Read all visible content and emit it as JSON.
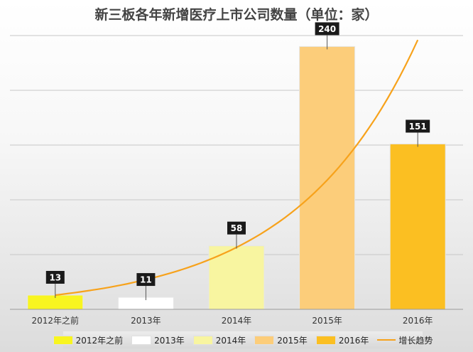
{
  "chart_data": {
    "type": "bar",
    "title": "新三板各年新增医疗上市公司数量（单位：家）",
    "categories": [
      "2012年之前",
      "2013年",
      "2014年",
      "2015年",
      "2016年"
    ],
    "values": [
      13,
      11,
      58,
      240,
      151
    ],
    "colors": [
      "#f8f520",
      "#ffffff",
      "#f8f5a0",
      "#fccd7a",
      "#fbbf22"
    ],
    "ylim": [
      0,
      250
    ],
    "grid": true,
    "legend_position": "bottom",
    "trendline": {
      "name": "增长趋势",
      "type": "exponential",
      "color": "#f7a21b",
      "end_value": 246
    }
  }
}
